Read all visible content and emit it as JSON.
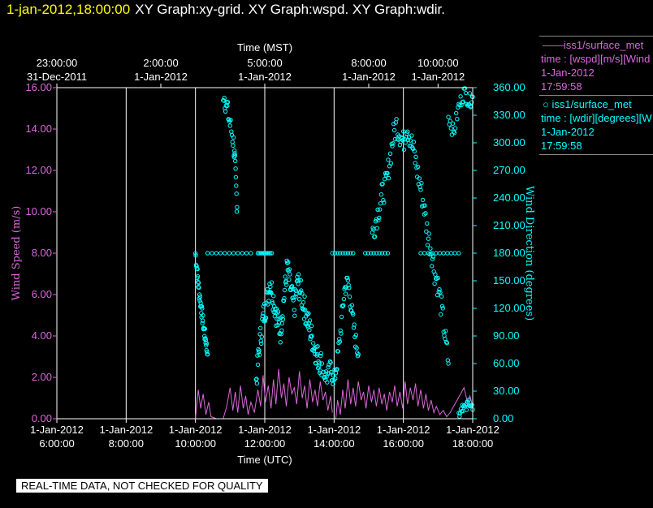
{
  "header": {
    "datetime": "1-jan-2012,18:00:00",
    "title": "XY Graph:xy-grid.  XY Graph:wspd.  XY Graph:wdir."
  },
  "legend": [
    {
      "line": "——iss1/surface_met",
      "var": "time : [wspd][m/s][Wind",
      "date": "1-Jan-2012",
      "time": "17:59:58",
      "color": "#dd66dd",
      "icon": "line-icon"
    },
    {
      "line": "○  iss1/surface_met",
      "var": "time : [wdir][degrees][W",
      "date": "1-Jan-2012",
      "time": "17:59:58",
      "color": "#00ffff",
      "icon": "circle-marker-icon"
    }
  ],
  "qc_notice": "REAL-TIME DATA, NOT CHECKED FOR QUALITY",
  "chart_data": {
    "type": "scatter",
    "title": "",
    "xlabel": "Time (UTC)",
    "x2label": "Time (MST)",
    "ylabel": "Wind Speed (m/s)",
    "y2label": "Wind Direction (degrees)",
    "xlim": [
      "2012-01-01 06:00",
      "2012-01-01 18:00"
    ],
    "ylim": [
      0,
      16
    ],
    "y2lim": [
      0,
      360
    ],
    "x_ticks": [
      {
        "t": 6,
        "l1": "1-Jan-2012",
        "l2": "6:00:00"
      },
      {
        "t": 8,
        "l1": "1-Jan-2012",
        "l2": "8:00:00"
      },
      {
        "t": 10,
        "l1": "1-Jan-2012",
        "l2": "10:00:00"
      },
      {
        "t": 12,
        "l1": "1-Jan-2012",
        "l2": "12:00:00"
      },
      {
        "t": 14,
        "l1": "1-Jan-2012",
        "l2": "14:00:00"
      },
      {
        "t": 16,
        "l1": "1-Jan-2012",
        "l2": "16:00:00"
      },
      {
        "t": 18,
        "l1": "1-Jan-2012",
        "l2": "18:00:00"
      }
    ],
    "x2_ticks": [
      {
        "t": 6,
        "l1": "23:00:00",
        "l2": "31-Dec-2011"
      },
      {
        "t": 9,
        "l1": "2:00:00",
        "l2": "1-Jan-2012"
      },
      {
        "t": 12,
        "l1": "5:00:00",
        "l2": "1-Jan-2012"
      },
      {
        "t": 15,
        "l1": "8:00:00",
        "l2": "1-Jan-2012"
      },
      {
        "t": 17,
        "l1": "10:00:00",
        "l2": "1-Jan-2012"
      }
    ],
    "y_ticks": [
      "0.00",
      "2.00",
      "4.00",
      "6.00",
      "8.00",
      "10.00",
      "12.00",
      "14.00",
      "16.00"
    ],
    "y2_ticks": [
      "0.00",
      "30.00",
      "60.00",
      "90.00",
      "120.00",
      "150.00",
      "180.00",
      "210.00",
      "240.00",
      "270.00",
      "300.00",
      "330.00",
      "360.00"
    ],
    "grid_x_hours": [
      8,
      10,
      12,
      14,
      16,
      18
    ],
    "series": [
      {
        "name": "iss1/surface_met time : [wspd][m/s]",
        "axis": "left",
        "style": "line",
        "color": "#dd66dd",
        "segments": [
          [
            [
              10.0,
              0.0
            ],
            [
              10.08,
              1.4
            ],
            [
              10.15,
              0.5
            ],
            [
              10.22,
              1.2
            ],
            [
              10.3,
              0.2
            ],
            [
              10.38,
              0.8
            ],
            [
              10.45,
              0.1
            ],
            [
              10.6,
              0.0
            ]
          ],
          [
            [
              10.8,
              0.0
            ],
            [
              10.9,
              0.6
            ],
            [
              11.0,
              1.5
            ],
            [
              11.08,
              0.4
            ],
            [
              11.15,
              1.3
            ],
            [
              11.22,
              0.3
            ],
            [
              11.3,
              1.6
            ],
            [
              11.38,
              0.5
            ],
            [
              11.45,
              1.1
            ],
            [
              11.52,
              0.2
            ],
            [
              11.6,
              0.8
            ],
            [
              11.7,
              0.3
            ],
            [
              11.8,
              1.4
            ],
            [
              11.88,
              0.6
            ],
            [
              11.95,
              2.1
            ],
            [
              12.02,
              0.8
            ],
            [
              12.1,
              1.6
            ],
            [
              12.18,
              0.5
            ],
            [
              12.25,
              1.9
            ],
            [
              12.32,
              0.7
            ],
            [
              12.4,
              2.4
            ],
            [
              12.48,
              1.0
            ],
            [
              12.55,
              1.7
            ],
            [
              12.62,
              0.6
            ],
            [
              12.7,
              2.0
            ],
            [
              12.78,
              1.2
            ],
            [
              12.85,
              1.5
            ],
            [
              12.92,
              0.7
            ],
            [
              13.0,
              2.3
            ],
            [
              13.08,
              1.0
            ],
            [
              13.15,
              1.6
            ],
            [
              13.22,
              0.5
            ],
            [
              13.3,
              1.9
            ],
            [
              13.38,
              0.8
            ],
            [
              13.45,
              1.4
            ],
            [
              13.52,
              0.6
            ],
            [
              13.6,
              1.8
            ],
            [
              13.68,
              0.9
            ],
            [
              13.75,
              1.3
            ],
            [
              13.82,
              0.4
            ],
            [
              13.9,
              1.1
            ],
            [
              13.95,
              0.3
            ]
          ],
          [
            [
              14.05,
              0.0
            ],
            [
              14.1,
              0.9
            ],
            [
              14.18,
              0.2
            ],
            [
              14.25,
              1.4
            ],
            [
              14.32,
              0.5
            ],
            [
              14.4,
              1.9
            ],
            [
              14.48,
              0.7
            ],
            [
              14.55,
              1.5
            ],
            [
              14.62,
              0.6
            ],
            [
              14.7,
              1.8
            ],
            [
              14.78,
              0.9
            ],
            [
              14.85,
              1.3
            ],
            [
              14.92,
              0.5
            ],
            [
              15.0,
              1.6
            ],
            [
              15.08,
              0.8
            ],
            [
              15.15,
              1.4
            ],
            [
              15.22,
              0.6
            ],
            [
              15.3,
              1.5
            ],
            [
              15.38,
              0.7
            ],
            [
              15.45,
              1.2
            ],
            [
              15.52,
              0.4
            ],
            [
              15.6,
              1.3
            ],
            [
              15.68,
              0.8
            ],
            [
              15.75,
              1.6
            ],
            [
              15.82,
              0.6
            ],
            [
              15.9,
              1.3
            ],
            [
              15.98,
              0.5
            ],
            [
              16.05,
              1.8
            ],
            [
              16.12,
              0.7
            ],
            [
              16.2,
              1.5
            ],
            [
              16.28,
              0.9
            ],
            [
              16.35,
              1.7
            ],
            [
              16.42,
              0.6
            ],
            [
              16.5,
              1.4
            ],
            [
              16.58,
              0.5
            ],
            [
              16.65,
              1.2
            ],
            [
              16.72,
              0.4
            ],
            [
              16.8,
              0.9
            ],
            [
              16.88,
              0.3
            ],
            [
              16.95,
              0.6
            ],
            [
              17.05,
              0.2
            ],
            [
              17.15,
              0.4
            ],
            [
              17.25,
              0.1
            ],
            [
              17.35,
              0.3
            ],
            [
              17.45,
              0.6
            ],
            [
              17.55,
              0.9
            ],
            [
              17.65,
              1.2
            ],
            [
              17.75,
              1.5
            ],
            [
              17.85,
              0.8
            ],
            [
              17.92,
              1.1
            ],
            [
              18.0,
              0.6
            ]
          ]
        ]
      },
      {
        "name": "iss1/surface_met time : [wdir][degrees]",
        "axis": "right",
        "style": "marker",
        "color": "#00ffff",
        "traces": [
          {
            "pts": [
              [
                10.0,
                180
              ],
              [
                10.05,
                160
              ],
              [
                10.1,
                140
              ],
              [
                10.15,
                125
              ],
              [
                10.2,
                110
              ],
              [
                10.25,
                95
              ],
              [
                10.3,
                85
              ],
              [
                10.35,
                70
              ]
            ],
            "n": 6,
            "jitter": 8
          },
          {
            "pts": [
              [
                10.35,
                180
              ],
              [
                11.6,
                180
              ]
            ],
            "n": 10,
            "jitter": 0
          },
          {
            "pts": [
              [
                10.8,
                355
              ],
              [
                10.9,
                340
              ],
              [
                11.0,
                320
              ],
              [
                11.1,
                300
              ],
              [
                11.15,
                270
              ],
              [
                11.2,
                230
              ]
            ],
            "n": 6,
            "jitter": 12
          },
          {
            "pts": [
              [
                11.8,
                180
              ],
              [
                12.2,
                180
              ]
            ],
            "n": 10,
            "jitter": 0
          },
          {
            "pts": [
              [
                11.75,
                40
              ],
              [
                11.85,
                80
              ],
              [
                11.95,
                110
              ],
              [
                12.05,
                125
              ],
              [
                12.15,
                150
              ],
              [
                12.25,
                130
              ],
              [
                12.35,
                110
              ],
              [
                12.45,
                95
              ],
              [
                12.55,
                130
              ],
              [
                12.65,
                165
              ],
              [
                12.75,
                140
              ],
              [
                12.85,
                120
              ],
              [
                12.95,
                150
              ],
              [
                13.05,
                135
              ],
              [
                13.15,
                120
              ],
              [
                13.25,
                105
              ],
              [
                13.35,
                90
              ],
              [
                13.45,
                75
              ],
              [
                13.55,
                65
              ],
              [
                13.65,
                60
              ]
            ],
            "n": 8,
            "jitter": 14
          },
          {
            "pts": [
              [
                13.7,
                50
              ],
              [
                13.8,
                45
              ],
              [
                13.9,
                55
              ],
              [
                14.0,
                40
              ],
              [
                14.1,
                65
              ],
              [
                14.2,
                100
              ],
              [
                14.3,
                140
              ],
              [
                14.4,
                150
              ],
              [
                14.5,
                120
              ],
              [
                14.6,
                90
              ],
              [
                14.7,
                70
              ]
            ],
            "n": 6,
            "jitter": 10
          },
          {
            "pts": [
              [
                13.95,
                180
              ],
              [
                14.55,
                180
              ]
            ],
            "n": 8,
            "jitter": 0
          },
          {
            "pts": [
              [
                14.9,
                180
              ],
              [
                15.55,
                180
              ]
            ],
            "n": 8,
            "jitter": 0
          },
          {
            "pts": [
              [
                15.1,
                200
              ],
              [
                15.2,
                215
              ],
              [
                15.3,
                230
              ],
              [
                15.4,
                245
              ],
              [
                15.5,
                255
              ],
              [
                15.6,
                280
              ],
              [
                15.7,
                305
              ],
              [
                15.8,
                320
              ],
              [
                15.9,
                310
              ],
              [
                16.0,
                300
              ],
              [
                16.1,
                320
              ],
              [
                16.2,
                305
              ],
              [
                16.3,
                290
              ],
              [
                16.4,
                270
              ],
              [
                16.5,
                250
              ],
              [
                16.6,
                230
              ],
              [
                16.7,
                200
              ],
              [
                16.8,
                185
              ],
              [
                16.9,
                160
              ],
              [
                17.0,
                145
              ],
              [
                17.1,
                120
              ],
              [
                17.2,
                90
              ],
              [
                17.3,
                60
              ]
            ],
            "n": 5,
            "jitter": 14
          },
          {
            "pts": [
              [
                16.5,
                180
              ],
              [
                17.6,
                180
              ]
            ],
            "n": 10,
            "jitter": 0
          },
          {
            "pts": [
              [
                17.3,
                330
              ],
              [
                17.45,
                310
              ],
              [
                17.6,
                340
              ],
              [
                17.75,
                355
              ],
              [
                17.9,
                345
              ],
              [
                18.0,
                350
              ]
            ],
            "n": 6,
            "jitter": 8
          },
          {
            "pts": [
              [
                17.6,
                5
              ],
              [
                17.7,
                15
              ],
              [
                17.8,
                10
              ],
              [
                17.9,
                20
              ],
              [
                18.0,
                10
              ]
            ],
            "n": 5,
            "jitter": 6
          }
        ]
      }
    ]
  }
}
